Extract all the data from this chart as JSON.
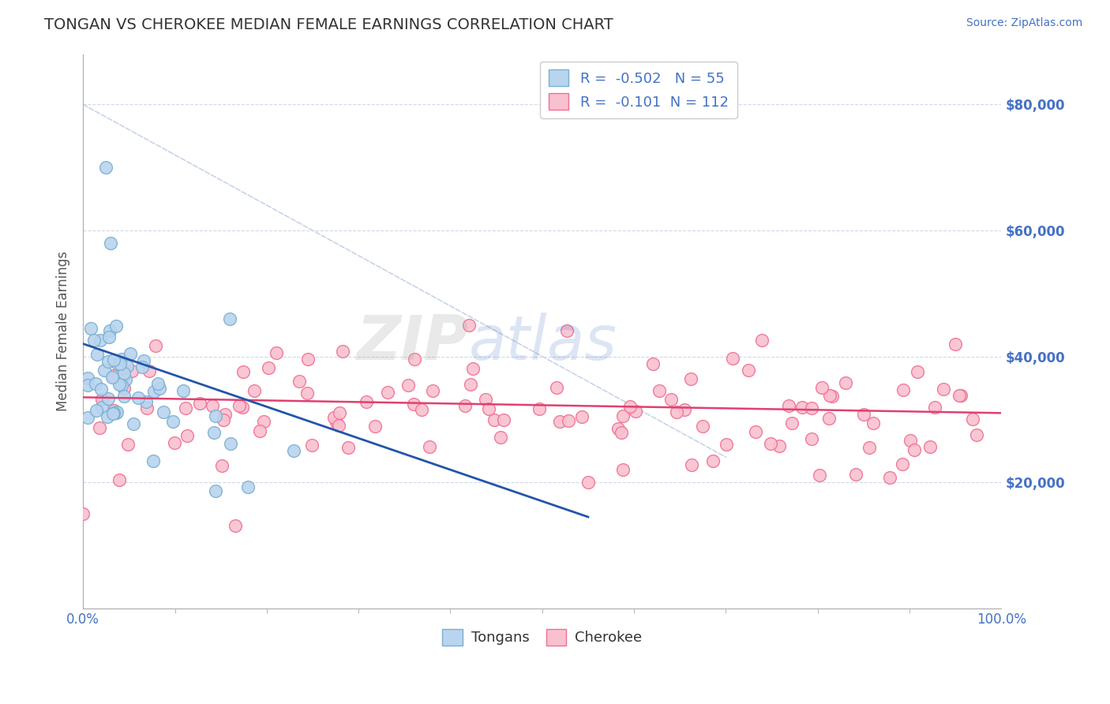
{
  "title": "TONGAN VS CHEROKEE MEDIAN FEMALE EARNINGS CORRELATION CHART",
  "source_text": "Source: ZipAtlas.com",
  "ylabel": "Median Female Earnings",
  "xlim": [
    0.0,
    1.0
  ],
  "ylim": [
    0,
    88000
  ],
  "ytick_positions": [
    20000,
    40000,
    60000,
    80000
  ],
  "ytick_labels": [
    "$20,000",
    "$40,000",
    "$60,000",
    "$80,000"
  ],
  "grid_color": "#d0d8e8",
  "background_color": "#ffffff",
  "tongan_face": "#b8d4ee",
  "tongan_edge": "#7aafd4",
  "cherokee_face": "#f9c0d0",
  "cherokee_edge": "#f07090",
  "tongan_R": -0.502,
  "tongan_N": 55,
  "cherokee_R": -0.101,
  "cherokee_N": 112,
  "legend_label_1": "Tongans",
  "legend_label_2": "Cherokee",
  "watermark": "ZIPAtlas",
  "title_color": "#333333",
  "axis_label_color": "#555555",
  "tick_label_color": "#4472c4",
  "tongan_line_color": "#2255aa",
  "cherokee_line_color": "#e04070",
  "diagonal_color": "#c8d4e8",
  "spine_color": "#aaaaaa",
  "legend_text_color": "#4472c4"
}
